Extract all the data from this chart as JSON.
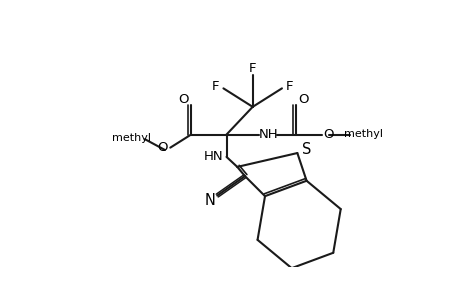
{
  "bg": "#ffffff",
  "lc": "#1a1a1a",
  "lw": 1.5,
  "fs": 9.5,
  "xlim": [
    0,
    460
  ],
  "ylim": [
    0,
    300
  ],
  "labels": {
    "F1": "F",
    "F2": "F",
    "F3": "F",
    "O_ester_db": "O",
    "O_ester_s": "O",
    "me_left": "methyl",
    "NH_right": "NH",
    "O_carb_db": "O",
    "O_carb_s": "O",
    "me_right": "methyl",
    "HN_down": "HN",
    "S_label": "S",
    "N_cn": "N"
  }
}
